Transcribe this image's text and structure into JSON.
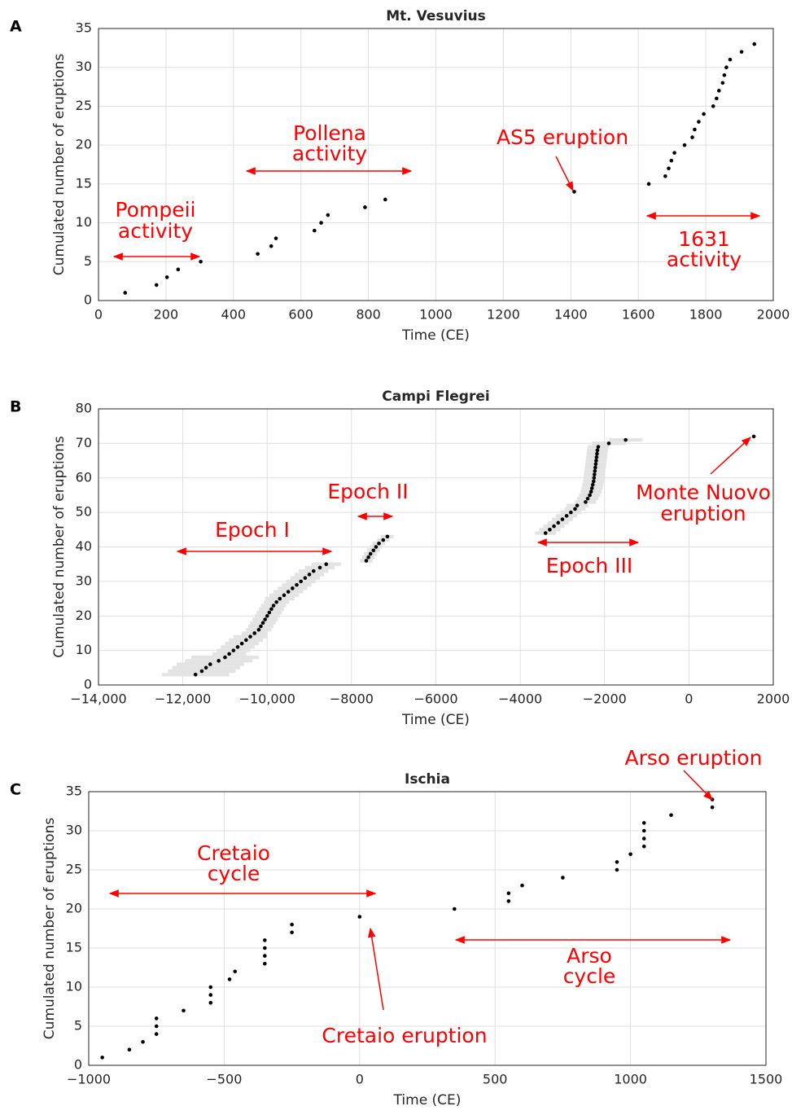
{
  "chart_data": [
    {
      "type": "scatter",
      "panel_label": "A",
      "title": "Mt. Vesuvius",
      "x_label": "Time (CE)",
      "y_label": "Cumulated number of eruptions",
      "xlim": [
        0,
        2000
      ],
      "ylim": [
        0,
        35
      ],
      "xticks": [
        0,
        200,
        400,
        600,
        800,
        1000,
        1200,
        1400,
        1600,
        1800,
        2000
      ],
      "yticks": [
        0,
        5,
        10,
        15,
        20,
        25,
        30,
        35
      ],
      "grid": true,
      "series": [
        {
          "color": "#000000",
          "x": [
            79,
            172,
            203,
            236,
            303,
            472,
            512,
            526,
            640,
            660,
            680,
            790,
            850,
            1410,
            1631,
            1680,
            1690,
            1698,
            1707,
            1737,
            1760,
            1767,
            1779,
            1794,
            1822,
            1832,
            1839,
            1850,
            1855,
            1861,
            1872,
            1906,
            1944
          ],
          "y": [
            1,
            2,
            3,
            4,
            5,
            6,
            7,
            8,
            9,
            10,
            11,
            12,
            13,
            14,
            15,
            16,
            17,
            18,
            19,
            20,
            21,
            22,
            23,
            24,
            25,
            26,
            27,
            28,
            29,
            30,
            31,
            32,
            33
          ]
        }
      ],
      "annotation_color": "#ff0000",
      "annotations": [
        {
          "text": [
            "Pompeii",
            "activity"
          ]
        },
        {
          "text": [
            "Pollena",
            "activity"
          ]
        },
        {
          "text": [
            "AS5 eruption"
          ]
        },
        {
          "text": [
            "1631",
            "activity"
          ]
        }
      ]
    },
    {
      "type": "scatter",
      "panel_label": "B",
      "title": "Campi Flegrei",
      "x_label": "Time (CE)",
      "y_label": "Cumulated number of eruptions",
      "xlim": [
        -14000,
        2000
      ],
      "ylim": [
        0,
        80
      ],
      "xticks": [
        {
          "value": -14000,
          "label": "−14,000"
        },
        {
          "value": -12000,
          "label": "−12,000"
        },
        {
          "value": -10000,
          "label": "−10,000"
        },
        {
          "value": -8000,
          "label": "−8000"
        },
        {
          "value": -6000,
          "label": "−6000"
        },
        {
          "value": -4000,
          "label": "−4000"
        },
        {
          "value": -2000,
          "label": "−2000"
        },
        0,
        2000
      ],
      "yticks": [
        0,
        10,
        20,
        30,
        40,
        50,
        60,
        70,
        80
      ],
      "grid": true,
      "series": [
        {
          "color": "#000000",
          "band_color": "#e3e3e3",
          "x": [
            -11700,
            -11550,
            -11450,
            -11350,
            -11150,
            -11000,
            -10900,
            -10800,
            -10700,
            -10600,
            -10500,
            -10400,
            -10300,
            -10200,
            -10150,
            -10100,
            -10050,
            -10000,
            -9950,
            -9900,
            -9850,
            -9780,
            -9700,
            -9600,
            -9500,
            -9400,
            -9300,
            -9200,
            -9100,
            -9000,
            -8900,
            -8750,
            -8600,
            -7650,
            -7600,
            -7550,
            -7480,
            -7420,
            -7350,
            -7250,
            -7150,
            -3400,
            -3300,
            -3200,
            -3100,
            -3000,
            -2900,
            -2800,
            -2700,
            -2650,
            -2450,
            -2400,
            -2350,
            -2320,
            -2300,
            -2280,
            -2260,
            -2250,
            -2240,
            -2230,
            -2220,
            -2210,
            -2200,
            -2190,
            -2180,
            -2170,
            -2150,
            -1900,
            -1500,
            1538
          ],
          "y": [
            3,
            4,
            5,
            6,
            7,
            8,
            9,
            10,
            11,
            12,
            13,
            14,
            15,
            16,
            17,
            18,
            19,
            20,
            21,
            22,
            23,
            24,
            25,
            26,
            27,
            28,
            29,
            30,
            31,
            32,
            33,
            34,
            35,
            36,
            37,
            38,
            39,
            40,
            41,
            42,
            43,
            44,
            45,
            46,
            47,
            48,
            49,
            50,
            51,
            52,
            53,
            54,
            55,
            56,
            57,
            58,
            59,
            60,
            61,
            62,
            63,
            64,
            65,
            66,
            67,
            68,
            69,
            70,
            71,
            72
          ],
          "xerr": [
            800,
            800,
            800,
            800,
            800,
            800,
            400,
            400,
            400,
            400,
            400,
            400,
            300,
            300,
            300,
            300,
            300,
            300,
            300,
            300,
            300,
            300,
            350,
            350,
            350,
            350,
            350,
            350,
            350,
            350,
            350,
            350,
            350,
            150,
            150,
            150,
            150,
            150,
            150,
            150,
            150,
            250,
            250,
            250,
            250,
            250,
            250,
            250,
            250,
            250,
            250,
            250,
            250,
            250,
            250,
            250,
            250,
            250,
            250,
            250,
            250,
            250,
            250,
            250,
            250,
            250,
            250,
            400,
            400,
            0
          ]
        }
      ],
      "annotation_color": "#ff0000",
      "annotations": [
        {
          "text": [
            "Epoch I"
          ]
        },
        {
          "text": [
            "Epoch II"
          ]
        },
        {
          "text": [
            "Epoch III"
          ]
        },
        {
          "text": [
            "Monte Nuovo",
            "eruption"
          ]
        }
      ]
    },
    {
      "type": "scatter",
      "panel_label": "C",
      "title": "Ischia",
      "x_label": "Time (CE)",
      "y_label": "Cumulated number of eruptions",
      "xlim": [
        -1000,
        1500
      ],
      "ylim": [
        0,
        35
      ],
      "xticks": [
        {
          "value": -1000,
          "label": "−1000"
        },
        {
          "value": -500,
          "label": "−500"
        },
        0,
        500,
        1000,
        1500
      ],
      "yticks": [
        0,
        5,
        10,
        15,
        20,
        25,
        30,
        35
      ],
      "grid": true,
      "series": [
        {
          "color": "#000000",
          "x": [
            -950,
            -850,
            -800,
            -750,
            -750,
            -750,
            -650,
            -550,
            -550,
            -550,
            -480,
            -460,
            -350,
            -350,
            -350,
            -350,
            -250,
            -250,
            0,
            350,
            550,
            550,
            600,
            750,
            950,
            950,
            1000,
            1050,
            1050,
            1050,
            1050,
            1150,
            1302,
            1302
          ],
          "y": [
            1,
            2,
            3,
            4,
            5,
            6,
            7,
            8,
            9,
            10,
            11,
            12,
            13,
            14,
            15,
            16,
            17,
            18,
            19,
            20,
            21,
            22,
            23,
            24,
            25,
            26,
            27,
            28,
            29,
            30,
            31,
            32,
            33,
            34
          ]
        }
      ],
      "annotation_color": "#ff0000",
      "annotations": [
        {
          "text": [
            "Arso eruption"
          ]
        },
        {
          "text": [
            "Cretaio",
            "cycle"
          ]
        },
        {
          "text": [
            "Cretaio eruption"
          ]
        },
        {
          "text": [
            "Arso",
            "cycle"
          ]
        }
      ]
    }
  ]
}
